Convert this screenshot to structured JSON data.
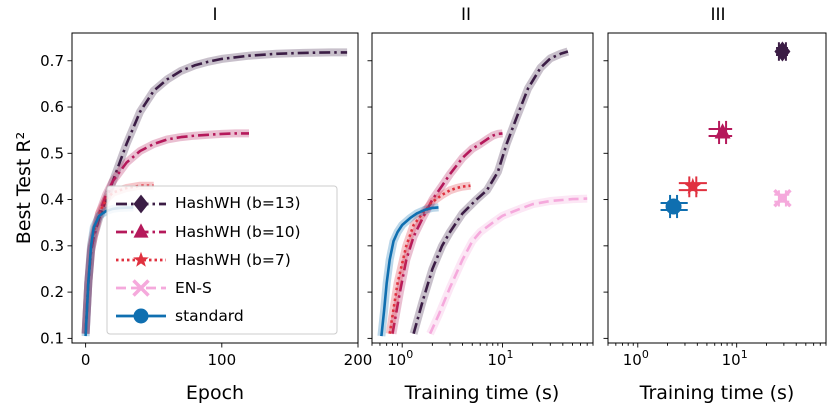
{
  "chart_data": [
    {
      "type": "line",
      "panel_title": "I",
      "xlabel": "Epoch",
      "ylabel": "Best Test R²",
      "xscale": "linear",
      "xlim": [
        -10,
        200
      ],
      "ylim": [
        0.09,
        0.76
      ],
      "xticks": [
        {
          "v": 0,
          "label": "0"
        },
        {
          "v": 100,
          "label": "100"
        },
        {
          "v": 200,
          "label": "200"
        }
      ],
      "yticks": [
        {
          "v": 0.1,
          "label": "0.1"
        },
        {
          "v": 0.2,
          "label": "0.2"
        },
        {
          "v": 0.3,
          "label": "0.3"
        },
        {
          "v": 0.4,
          "label": "0.4"
        },
        {
          "v": 0.5,
          "label": "0.5"
        },
        {
          "v": 0.6,
          "label": "0.6"
        },
        {
          "v": 0.7,
          "label": "0.7"
        }
      ],
      "legend_position": "lower-right",
      "series": [
        {
          "name": "HashWH (b=13)",
          "points": [
            [
              0,
              0.11
            ],
            [
              2,
              0.22
            ],
            [
              4,
              0.29
            ],
            [
              6,
              0.32
            ],
            [
              10,
              0.36
            ],
            [
              15,
              0.4
            ],
            [
              20,
              0.44
            ],
            [
              30,
              0.52
            ],
            [
              40,
              0.59
            ],
            [
              50,
              0.635
            ],
            [
              60,
              0.66
            ],
            [
              70,
              0.678
            ],
            [
              80,
              0.69
            ],
            [
              90,
              0.698
            ],
            [
              100,
              0.704
            ],
            [
              120,
              0.711
            ],
            [
              140,
              0.715
            ],
            [
              160,
              0.717
            ],
            [
              180,
              0.718
            ],
            [
              192,
              0.718
            ]
          ]
        },
        {
          "name": "HashWH (b=10)",
          "points": [
            [
              0,
              0.11
            ],
            [
              2,
              0.22
            ],
            [
              4,
              0.29
            ],
            [
              6,
              0.32
            ],
            [
              10,
              0.37
            ],
            [
              15,
              0.41
            ],
            [
              20,
              0.44
            ],
            [
              30,
              0.48
            ],
            [
              40,
              0.505
            ],
            [
              50,
              0.52
            ],
            [
              60,
              0.53
            ],
            [
              70,
              0.535
            ],
            [
              80,
              0.538
            ],
            [
              90,
              0.54
            ],
            [
              100,
              0.542
            ],
            [
              110,
              0.543
            ],
            [
              120,
              0.543
            ]
          ]
        },
        {
          "name": "HashWH (b=7)",
          "points": [
            [
              0,
              0.11
            ],
            [
              2,
              0.22
            ],
            [
              4,
              0.3
            ],
            [
              6,
              0.33
            ],
            [
              10,
              0.37
            ],
            [
              15,
              0.4
            ],
            [
              20,
              0.415
            ],
            [
              30,
              0.425
            ],
            [
              40,
              0.43
            ],
            [
              50,
              0.43
            ]
          ]
        },
        {
          "name": "EN-S",
          "points": []
        },
        {
          "name": "standard",
          "points": [
            [
              0,
              0.105
            ],
            [
              2,
              0.22
            ],
            [
              4,
              0.3
            ],
            [
              6,
              0.34
            ],
            [
              10,
              0.365
            ],
            [
              15,
              0.375
            ],
            [
              20,
              0.38
            ],
            [
              25,
              0.382
            ],
            [
              35,
              0.383
            ]
          ]
        }
      ]
    },
    {
      "type": "line",
      "panel_title": "II",
      "xlabel": "Training time (s)",
      "xscale": "log",
      "xlim": [
        0.5,
        80
      ],
      "ylim": [
        0.09,
        0.76
      ],
      "xticks": [
        {
          "v": 1,
          "base": "10",
          "exp": "0"
        },
        {
          "v": 10,
          "base": "10",
          "exp": "1"
        }
      ],
      "series": [
        {
          "name": "HashWH (b=13)",
          "points": [
            [
              1.3,
              0.11
            ],
            [
              1.6,
              0.18
            ],
            [
              2.0,
              0.25
            ],
            [
              2.5,
              0.3
            ],
            [
              3.0,
              0.33
            ],
            [
              4.0,
              0.37
            ],
            [
              5.5,
              0.4
            ],
            [
              7,
              0.42
            ],
            [
              9,
              0.46
            ],
            [
              11,
              0.52
            ],
            [
              14,
              0.58
            ],
            [
              18,
              0.64
            ],
            [
              24,
              0.685
            ],
            [
              30,
              0.705
            ],
            [
              38,
              0.715
            ],
            [
              45,
              0.72
            ]
          ]
        },
        {
          "name": "HashWH (b=10)",
          "points": [
            [
              0.8,
              0.11
            ],
            [
              0.95,
              0.2
            ],
            [
              1.1,
              0.27
            ],
            [
              1.3,
              0.32
            ],
            [
              1.6,
              0.36
            ],
            [
              2.0,
              0.4
            ],
            [
              2.5,
              0.43
            ],
            [
              3.0,
              0.455
            ],
            [
              4.0,
              0.49
            ],
            [
              5.0,
              0.51
            ],
            [
              6.0,
              0.52
            ],
            [
              7.0,
              0.53
            ],
            [
              8.0,
              0.538
            ],
            [
              9.0,
              0.542
            ],
            [
              10,
              0.543
            ]
          ]
        },
        {
          "name": "HashWH (b=7)",
          "points": [
            [
              0.75,
              0.11
            ],
            [
              0.9,
              0.22
            ],
            [
              1.1,
              0.3
            ],
            [
              1.3,
              0.345
            ],
            [
              1.6,
              0.37
            ],
            [
              2.0,
              0.395
            ],
            [
              2.5,
              0.41
            ],
            [
              3.0,
              0.42
            ],
            [
              3.5,
              0.425
            ],
            [
              4.0,
              0.428
            ],
            [
              4.8,
              0.43
            ]
          ]
        },
        {
          "name": "EN-S",
          "points": [
            [
              1.9,
              0.11
            ],
            [
              2.3,
              0.15
            ],
            [
              3.0,
              0.21
            ],
            [
              4.0,
              0.27
            ],
            [
              5.0,
              0.31
            ],
            [
              6.0,
              0.33
            ],
            [
              8.0,
              0.35
            ],
            [
              10,
              0.365
            ],
            [
              15,
              0.38
            ],
            [
              20,
              0.39
            ],
            [
              30,
              0.397
            ],
            [
              50,
              0.401
            ],
            [
              70,
              0.402
            ]
          ]
        },
        {
          "name": "standard",
          "points": [
            [
              0.62,
              0.105
            ],
            [
              0.66,
              0.16
            ],
            [
              0.7,
              0.22
            ],
            [
              0.75,
              0.27
            ],
            [
              0.82,
              0.31
            ],
            [
              0.9,
              0.33
            ],
            [
              1.0,
              0.345
            ],
            [
              1.2,
              0.36
            ],
            [
              1.4,
              0.37
            ],
            [
              1.7,
              0.378
            ],
            [
              2.0,
              0.382
            ],
            [
              2.3,
              0.383
            ]
          ]
        }
      ]
    },
    {
      "type": "scatter",
      "panel_title": "III",
      "xlabel": "Training time (s)",
      "xscale": "log",
      "xlim": [
        0.5,
        80
      ],
      "ylim": [
        0.09,
        0.76
      ],
      "xticks": [
        {
          "v": 1,
          "base": "10",
          "exp": "0"
        },
        {
          "v": 10,
          "base": "10",
          "exp": "1"
        }
      ],
      "series": [
        {
          "name": "HashWH (b=13)",
          "x": 29,
          "y": 0.72,
          "xerr": [
            25,
            33
          ],
          "yerr": [
            0.7,
            0.74
          ]
        },
        {
          "name": "HashWH (b=10)",
          "x": 7.2,
          "y": 0.545,
          "xerr": [
            5.2,
            9.0
          ],
          "yerr": [
            0.52,
            0.57
          ]
        },
        {
          "name": "HashWH (b=7)",
          "x": 3.6,
          "y": 0.428,
          "xerr": [
            2.6,
            5.0
          ],
          "yerr": [
            0.405,
            0.45
          ]
        },
        {
          "name": "EN-S",
          "x": 29,
          "y": 0.403,
          "xerr": [
            24,
            34
          ],
          "yerr": [
            0.385,
            0.42
          ]
        },
        {
          "name": "standard",
          "x": 2.3,
          "y": 0.385,
          "xerr": [
            1.7,
            3.2
          ],
          "yerr": [
            0.36,
            0.41
          ]
        }
      ]
    }
  ],
  "styles": [
    {
      "name": "HashWH (b=13)",
      "color": "#3b1d45",
      "marker": "diamond",
      "dash": "dashdot"
    },
    {
      "name": "HashWH (b=10)",
      "color": "#b5195b",
      "marker": "triangle",
      "dash": "dashdot"
    },
    {
      "name": "HashWH (b=7)",
      "color": "#e0313f",
      "marker": "star",
      "dash": "dotted"
    },
    {
      "name": "EN-S",
      "color": "#f5a9dc",
      "marker": "x",
      "dash": "dashed"
    },
    {
      "name": "standard",
      "color": "#0f6fb0",
      "marker": "circle",
      "dash": "solid"
    }
  ]
}
